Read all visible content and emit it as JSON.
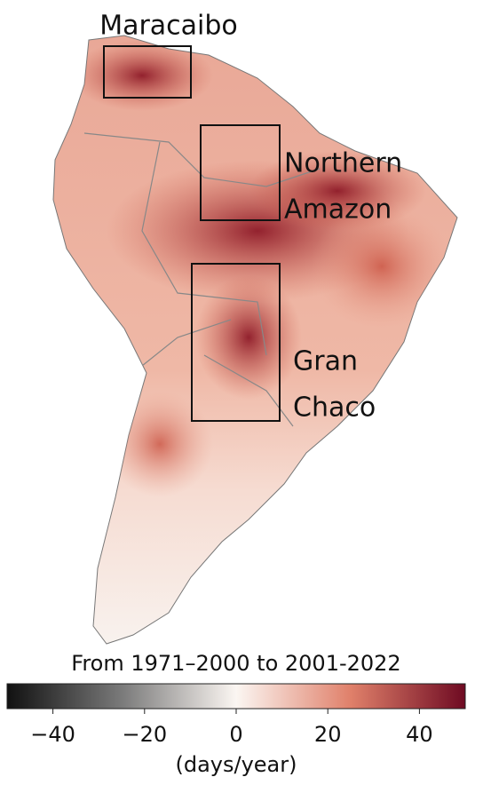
{
  "regions": [
    {
      "label": "Maracaibo"
    },
    {
      "label": "Northern"
    },
    {
      "label": "Amazon"
    },
    {
      "label": "Gran"
    },
    {
      "label": "Chaco"
    }
  ],
  "colorbar": {
    "title": "From 1971–2000 to 2001-2022",
    "lim": [
      -50,
      50
    ],
    "ticks": [
      {
        "value": -40,
        "label": "−40"
      },
      {
        "value": -20,
        "label": "−20"
      },
      0,
      20,
      40
    ],
    "label": "(days/year)",
    "colors": [
      "#111111",
      "#7a7a7a",
      "#fbf6f2",
      "#e0806a",
      "#6e0a22"
    ]
  }
}
